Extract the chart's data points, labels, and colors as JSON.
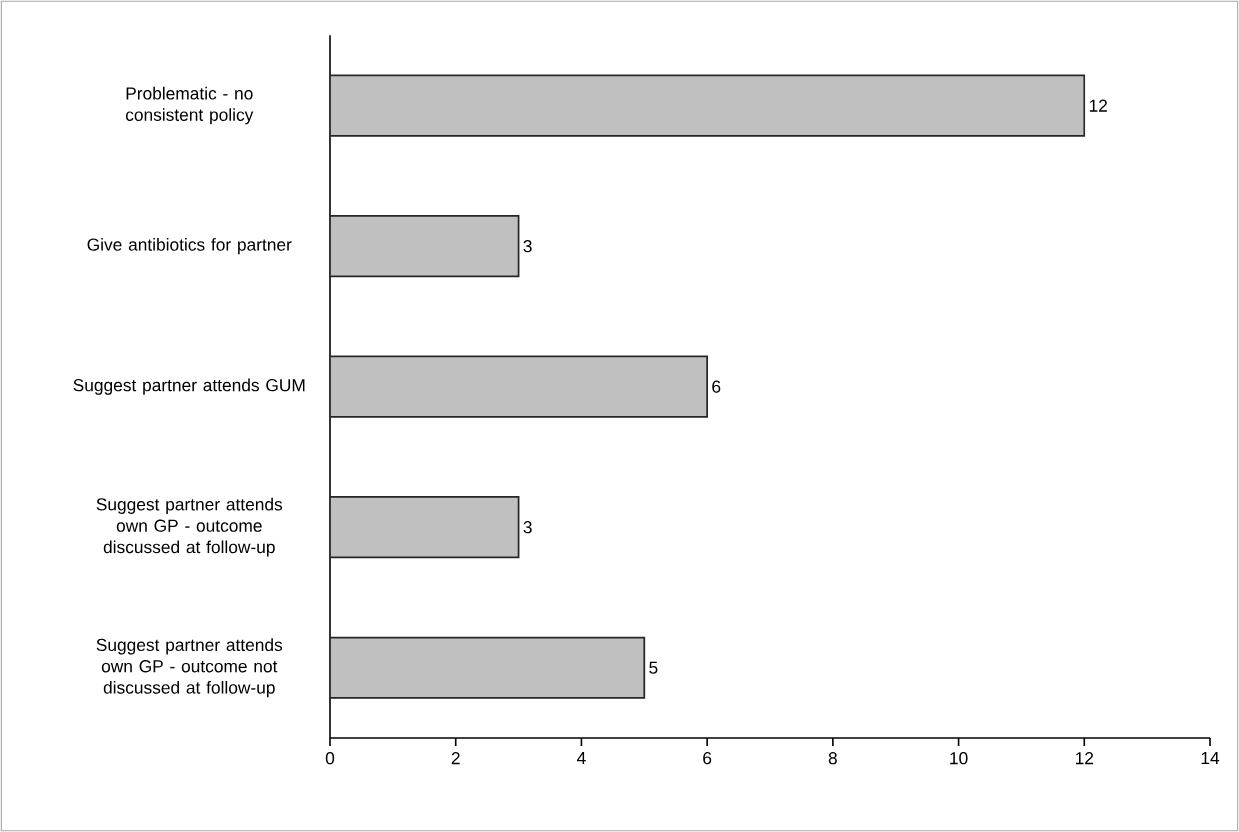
{
  "chart_data": {
    "type": "bar",
    "orientation": "horizontal",
    "categories": [
      "Problematic - no consistent policy",
      "Give antibiotics for partner",
      "Suggest partner attends GUM",
      "Suggest partner attends own GP - outcome discussed at follow-up",
      "Suggest partner attends own GP - outcome not discussed at follow-up"
    ],
    "values": [
      12,
      3,
      6,
      3,
      5
    ],
    "color": "#c0c0c0",
    "xlim": [
      0,
      14
    ],
    "xticks": [
      0,
      2,
      4,
      6,
      8,
      10,
      12,
      14
    ],
    "data_labels": true,
    "grid": false
  }
}
